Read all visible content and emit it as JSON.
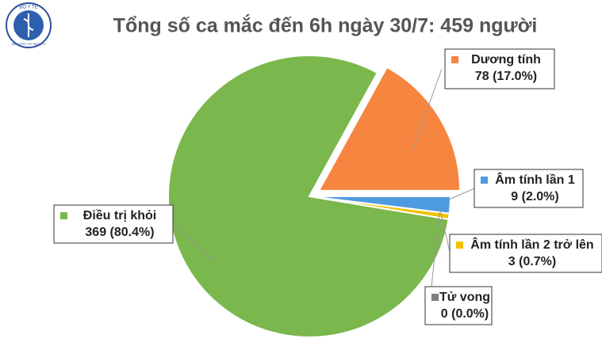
{
  "logo": {
    "top_text": "BỘ Y TẾ",
    "bottom_text": "MINISTRY OF HEALTH"
  },
  "chart_data": {
    "type": "pie",
    "title": "Tổng số ca mắc đến 6h ngày 30/7: 459 người",
    "categories": [
      "Dương tính",
      "Âm tính lần 1",
      "Âm tính lần 2 trở lên",
      "Tử vong",
      "Điều trị khỏi"
    ],
    "values": [
      78,
      9,
      3,
      0,
      369
    ],
    "value_labels": [
      "78 (17.0%)",
      "9 (2.0%)",
      "3 (0.7%)",
      "0 (0.0%)",
      "369 (80.4%)"
    ],
    "colors": [
      "#f5853f",
      "#4f9be0",
      "#f2c200",
      "#7f7f7f",
      "#7ab74c"
    ]
  }
}
